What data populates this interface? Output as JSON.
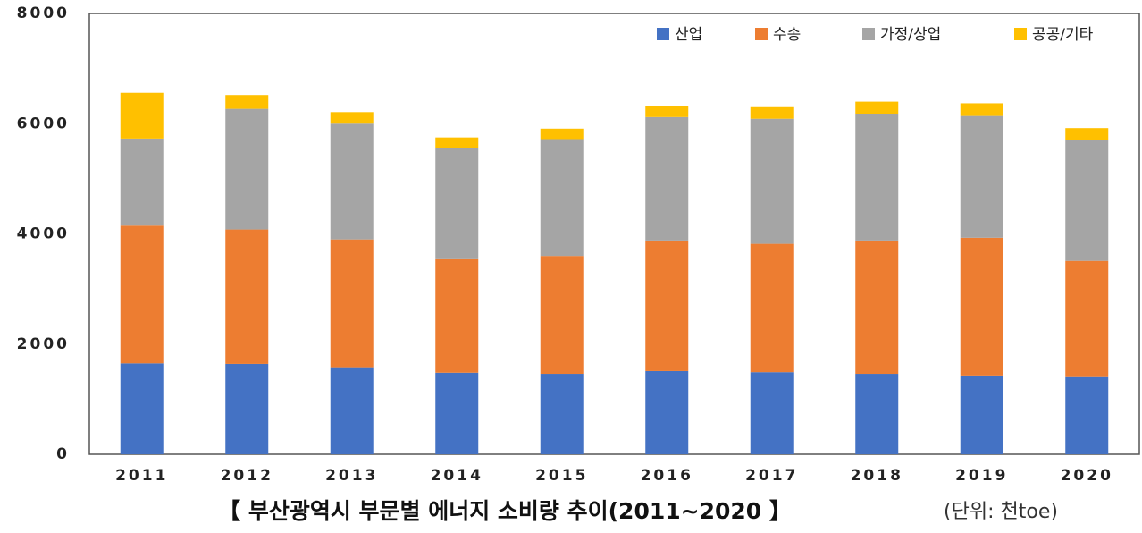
{
  "chart_data": {
    "type": "stacked_bar",
    "title": "【 부산광역시 부문별 에너지 소비량 추이(2011~2020 】",
    "subtitle": "(단위: 천toe)",
    "categories": [
      "2011",
      "2012",
      "2013",
      "2014",
      "2015",
      "2016",
      "2017",
      "2018",
      "2019",
      "2020"
    ],
    "series": [
      {
        "name": "산업",
        "color": "#4472c4",
        "values": [
          1650,
          1640,
          1580,
          1480,
          1460,
          1510,
          1490,
          1460,
          1430,
          1400
        ]
      },
      {
        "name": "수송",
        "color": "#ed7d31",
        "values": [
          2500,
          2440,
          2320,
          2060,
          2140,
          2370,
          2330,
          2420,
          2500,
          2110
        ]
      },
      {
        "name": "가정/상업",
        "color": "#a5a5a5",
        "values": [
          1580,
          2190,
          2100,
          2010,
          2120,
          2240,
          2270,
          2300,
          2210,
          2190
        ]
      },
      {
        "name": "공공/기타",
        "color": "#ffc000",
        "values": [
          830,
          250,
          210,
          200,
          190,
          200,
          210,
          220,
          230,
          220
        ]
      }
    ],
    "ylim": [
      0,
      8000
    ],
    "yticks": [
      0,
      2000,
      4000,
      6000,
      8000
    ],
    "grid": false,
    "legend": "top-right"
  }
}
